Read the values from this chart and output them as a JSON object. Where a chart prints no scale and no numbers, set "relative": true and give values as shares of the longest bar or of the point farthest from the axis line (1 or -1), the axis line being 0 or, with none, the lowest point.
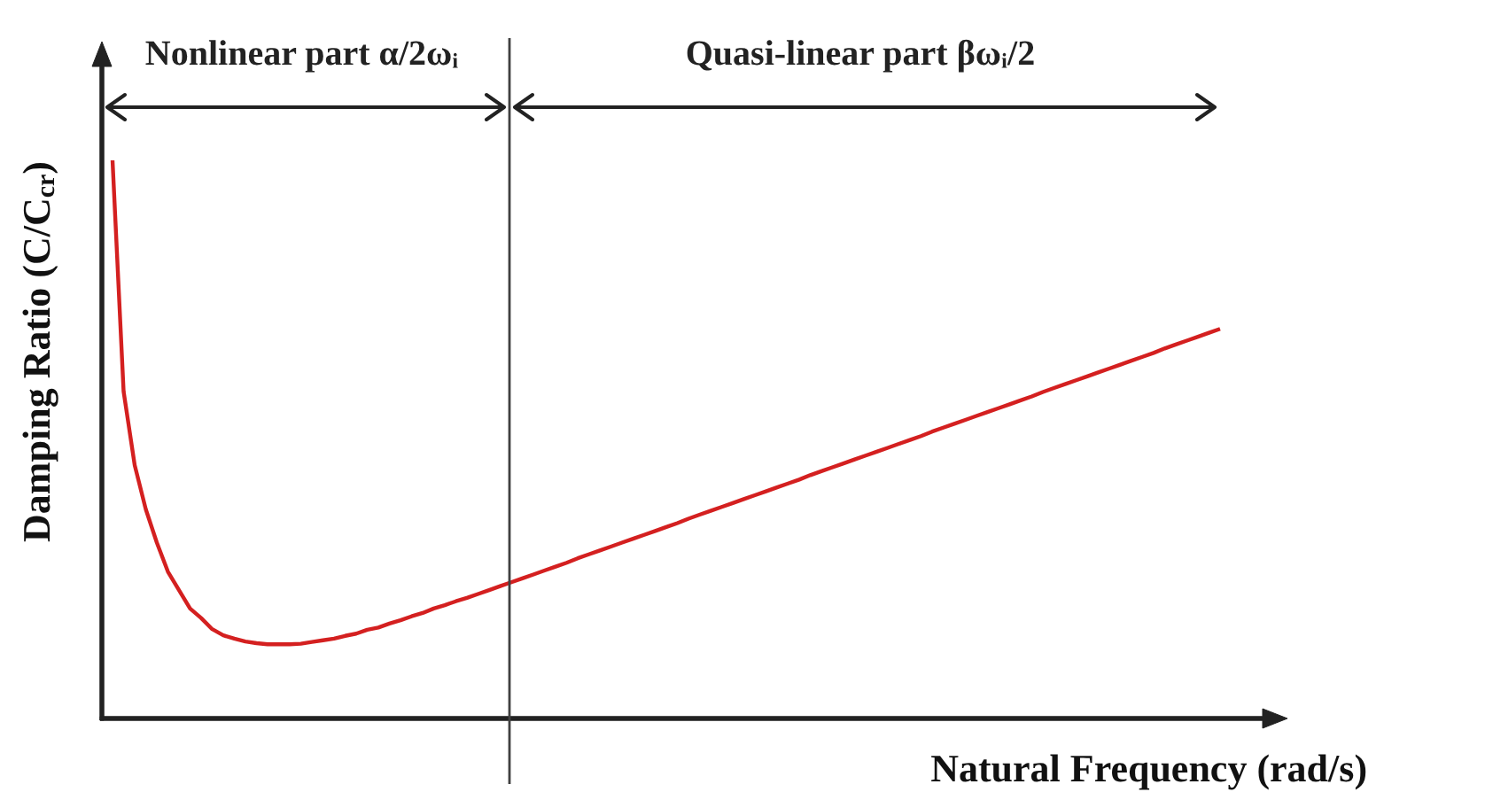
{
  "chart_data": {
    "type": "line",
    "xlabel": "Natural Frequency (rad/s)",
    "ylabel": "Damping Ratio (C/C$_{cr}$)",
    "annotations": [
      "Nonlinear part α/2ωᵢ",
      "Quasi-linear part βωᵢ/2"
    ],
    "relative": true,
    "categories": [
      null,
      null,
      null,
      null,
      null,
      null,
      null,
      null,
      null,
      null,
      null,
      null,
      null,
      null,
      null,
      null,
      null,
      null,
      null,
      null,
      null,
      null,
      null,
      null,
      null,
      null,
      null,
      null,
      null,
      null,
      null,
      null,
      null,
      null,
      null,
      null,
      null,
      null,
      null,
      null,
      null,
      null,
      null,
      null,
      null,
      null,
      null,
      null,
      null,
      null,
      null,
      null,
      null,
      null,
      null,
      null,
      null,
      null,
      null,
      null,
      null,
      null,
      null,
      null,
      null,
      null,
      null,
      null,
      null,
      null,
      null,
      null,
      null,
      null,
      null,
      null,
      null,
      null,
      null,
      null,
      null,
      null,
      null,
      null,
      null,
      null,
      null,
      null,
      null,
      null,
      null,
      null,
      null,
      null,
      null,
      null,
      null,
      null,
      null,
      null,
      null
    ],
    "series": [
      {
        "color": "#d42020",
        "values": [
          1.0,
          0.586,
          0.454,
          0.375,
          0.315,
          0.263,
          0.23,
          0.197,
          0.18,
          0.16,
          0.149,
          0.143,
          0.138,
          0.135,
          0.133,
          0.133,
          0.133,
          0.134,
          0.137,
          0.14,
          0.143,
          0.148,
          0.152,
          0.159,
          0.163,
          0.17,
          0.176,
          0.183,
          0.189,
          0.197,
          0.203,
          0.21,
          0.216,
          0.223,
          0.23,
          0.237,
          0.244,
          0.251,
          0.258,
          0.265,
          0.272,
          0.279,
          0.287,
          0.294,
          0.301,
          0.308,
          0.315,
          0.322,
          0.329,
          0.336,
          0.343,
          0.35,
          0.358,
          0.365,
          0.372,
          0.379,
          0.386,
          0.393,
          0.4,
          0.407,
          0.414,
          0.421,
          0.428,
          0.436,
          0.443,
          0.45,
          0.457,
          0.464,
          0.471,
          0.478,
          0.485,
          0.492,
          0.499,
          0.506,
          0.514,
          0.521,
          0.528,
          0.535,
          0.542,
          0.549,
          0.556,
          0.563,
          0.57,
          0.577,
          0.585,
          0.592,
          0.599,
          0.606,
          0.613,
          0.62,
          0.627,
          0.634,
          0.641,
          0.648,
          0.655,
          0.663,
          0.67,
          0.677,
          0.684,
          0.691,
          0.698
        ]
      }
    ]
  }
}
